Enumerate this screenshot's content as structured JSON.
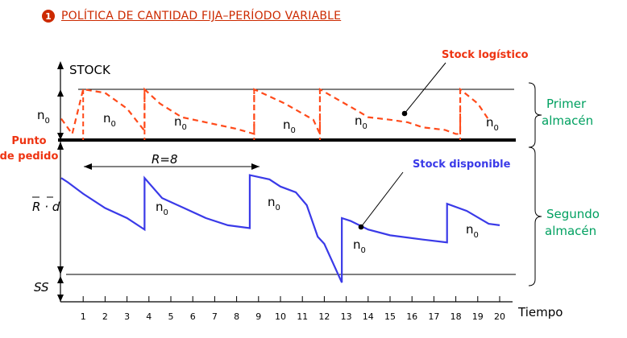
{
  "title": {
    "badge": "1",
    "text": "POLÍTICA DE CANTIDAD FIJA–PERÍODO VARIABLE"
  },
  "labels": {
    "y_axis": "STOCK",
    "x_axis": "Tiempo",
    "stock_logistico": "Stock logístico",
    "stock_disponible": "Stock disponible",
    "punto_de_pedido_line1": "Punto",
    "punto_de_pedido_line2": "de pedido",
    "primer_almacen_line1": "Primer",
    "primer_almacen_line2": "almacén",
    "segundo_almacen_line1": "Segundo",
    "segundo_almacen_line2": "almacén",
    "n0_left": "n",
    "n0_sub": "0",
    "rd_label": "R · d",
    "ss_label": "SS",
    "r_label": "R=8"
  },
  "chart_data": {
    "type": "line",
    "x_ticks": [
      "1",
      "2",
      "3",
      "4",
      "5",
      "6",
      "7",
      "8",
      "9",
      "10",
      "11",
      "12",
      "13",
      "14",
      "15",
      "16",
      "17",
      "18",
      "19",
      "20"
    ],
    "series": [
      {
        "name": "Stock logístico",
        "style": "dashed",
        "color": "#ff4a1a",
        "points": [
          [
            0.0,
            0.42
          ],
          [
            0.5,
            0.12
          ],
          [
            1.0,
            1.0
          ],
          [
            2.0,
            0.93
          ],
          [
            3.0,
            0.62
          ],
          [
            3.8,
            0.18
          ],
          [
            3.8,
            1.0
          ],
          [
            4.5,
            0.72
          ],
          [
            5.5,
            0.45
          ],
          [
            8.0,
            0.22
          ],
          [
            8.8,
            0.12
          ],
          [
            8.8,
            1.0
          ],
          [
            10.2,
            0.72
          ],
          [
            11.5,
            0.4
          ],
          [
            11.8,
            0.12
          ],
          [
            11.8,
            1.0
          ],
          [
            13.5,
            0.58
          ],
          [
            14.0,
            0.45
          ],
          [
            15.0,
            0.4
          ],
          [
            15.8,
            0.35
          ],
          [
            16.5,
            0.25
          ],
          [
            17.5,
            0.2
          ],
          [
            18.0,
            0.12
          ],
          [
            18.2,
            0.12
          ],
          [
            18.2,
            1.0
          ],
          [
            19.0,
            0.72
          ],
          [
            19.5,
            0.4
          ]
        ]
      },
      {
        "name": "Stock disponible",
        "style": "solid",
        "color": "#3a3ae8",
        "points": [
          [
            0.0,
            0.22
          ],
          [
            0.3,
            0.25
          ],
          [
            1.0,
            0.33
          ],
          [
            2.0,
            0.43
          ],
          [
            3.0,
            0.5
          ],
          [
            3.8,
            0.58
          ],
          [
            3.8,
            0.22
          ],
          [
            4.6,
            0.36
          ],
          [
            5.6,
            0.43
          ],
          [
            6.6,
            0.5
          ],
          [
            7.6,
            0.55
          ],
          [
            8.6,
            0.57
          ],
          [
            8.6,
            0.2
          ],
          [
            9.5,
            0.23
          ],
          [
            10.0,
            0.28
          ],
          [
            10.7,
            0.32
          ],
          [
            11.2,
            0.41
          ],
          [
            11.7,
            0.63
          ],
          [
            12.0,
            0.68
          ],
          [
            12.8,
            0.95
          ],
          [
            12.8,
            0.5
          ],
          [
            13.2,
            0.52
          ],
          [
            14.0,
            0.58
          ],
          [
            15.0,
            0.62
          ],
          [
            16.5,
            0.65
          ],
          [
            17.6,
            0.67
          ],
          [
            17.6,
            0.4
          ],
          [
            18.5,
            0.45
          ],
          [
            19.5,
            0.54
          ],
          [
            20.0,
            0.55
          ]
        ]
      }
    ],
    "segment_labels_top": [
      "n0",
      "n0",
      "n0",
      "n0",
      "n0"
    ],
    "segment_labels_bottom": [
      "n0",
      "n0",
      "n0",
      "n0",
      "n0"
    ]
  }
}
